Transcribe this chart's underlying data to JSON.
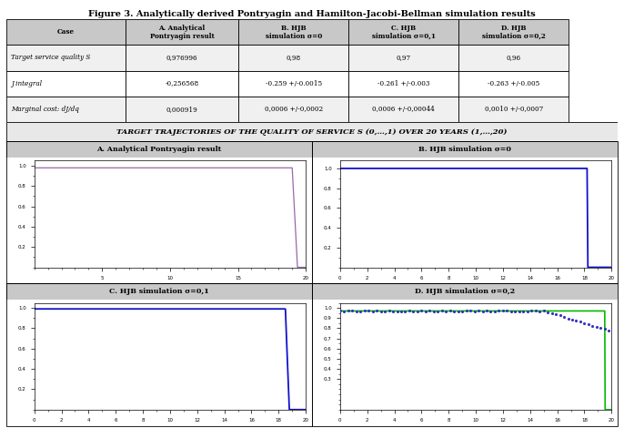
{
  "title": "Figure 3. Analytically derived Pontryagin and Hamilton-Jacobi-Bellman simulation results",
  "subtitle": "TARGET TRAJECTORIES OF THE QUALITY OF SERVICE S (0,…,1) OVER 20 YEARS (1,…,20)",
  "table_headers": [
    "Case",
    "A. Analytical\nPontryagin result",
    "B. HJB\nsimulation σ=0",
    "C. HJB\nsimulation σ=0,1",
    "D. HJB\nsimulation σ=0,2"
  ],
  "table_col1_rows": [
    "Target service quality S",
    "J integral",
    "Marginal cost: dJ/dq"
  ],
  "table_col1_italic": [
    true,
    true,
    true
  ],
  "table_col1_special": [
    "S",
    "J",
    "dJ/dq"
  ],
  "table_data_rows": [
    [
      "0,976996",
      "0,98",
      "0,97",
      "0,96"
    ],
    [
      "-0,256568",
      "-0.259 +/-0.0015",
      "-0.261 +/-0.003",
      "-0.263 +/-0.005"
    ],
    [
      "0,000919",
      "0,0006 +/-0,0002",
      "0,0006 +/-0,00044",
      "0,0010 +/-0,0007"
    ]
  ],
  "plot_titles": [
    "A. Analytical Pontryagin result",
    "B. HJB simulation σ=0",
    "C. HJB simulation σ=0,1",
    "D. HJB simulation σ=0,2"
  ],
  "color_A": "#9966aa",
  "color_B": "#1111cc",
  "color_C": "#1111cc",
  "color_D_green": "#00bb00",
  "color_D_blue": "#3333bb",
  "bg": "#ffffff",
  "header_bg": "#c8c8c8",
  "row_alt_bg": "#f0f0f0",
  "subtitle_bg": "#e8e8e8",
  "panel_header_bg": "#c8c8c8"
}
